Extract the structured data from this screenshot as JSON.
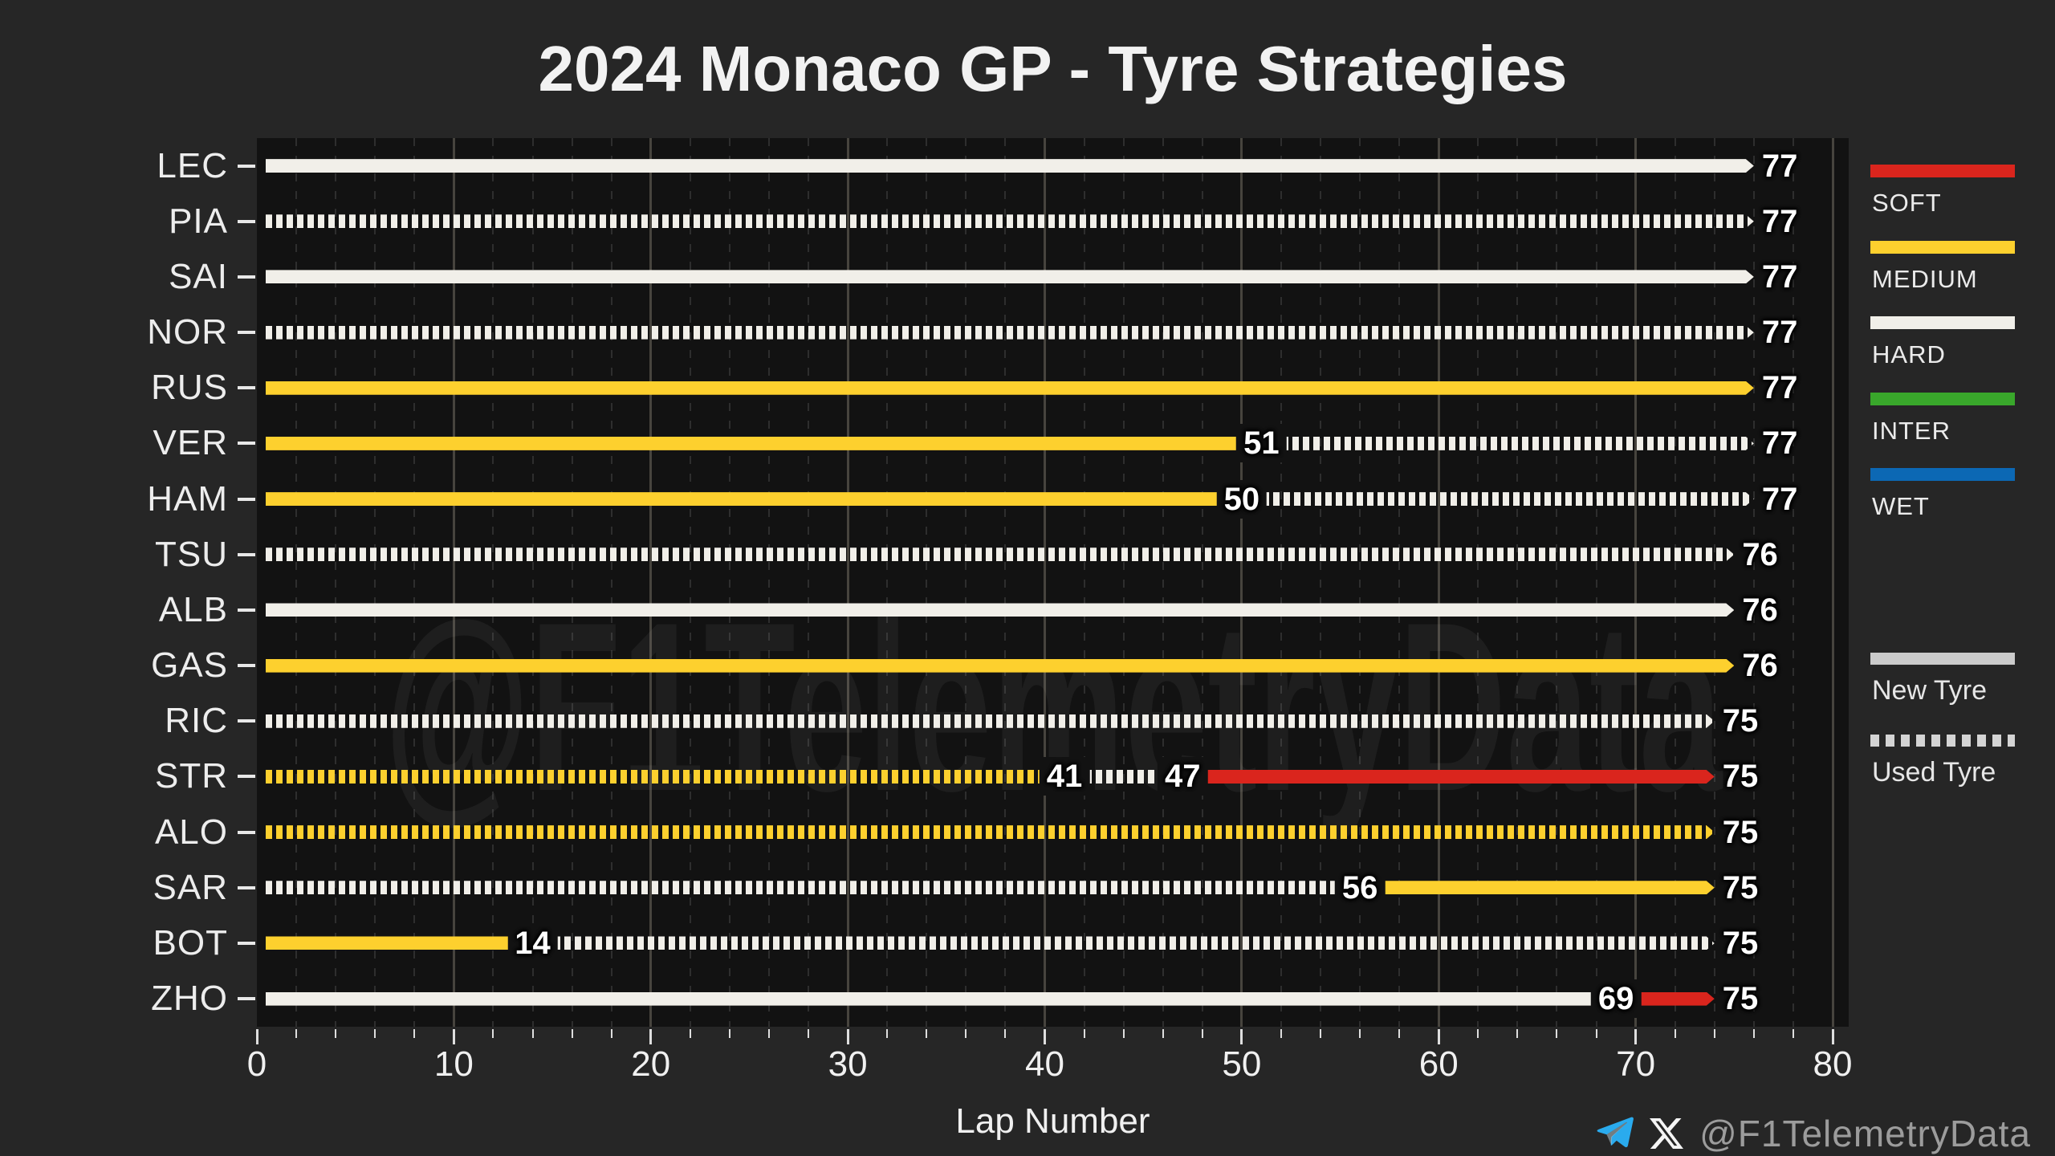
{
  "chart_data": {
    "type": "gantt",
    "title": "2024 Monaco GP - Tyre Strategies",
    "xlabel": "Lap Number",
    "watermark": "@F1TelemetryData",
    "axis": {
      "min": 0,
      "max": 80,
      "major_step": 10,
      "minor_step": 2,
      "tick_labels": [
        "0",
        "10",
        "20",
        "30",
        "40",
        "50",
        "60",
        "70",
        "80"
      ]
    },
    "compound_colors": {
      "SOFT": "#da251d",
      "MEDIUM": "#fdd02e",
      "HARD": "#f1efe9",
      "INTER": "#39a72b",
      "WET": "#0c68b4"
    },
    "drivers": [
      {
        "code": "LEC",
        "stints": [
          {
            "from": 0,
            "to": 77,
            "compound": "HARD",
            "tyre": "new",
            "label": "77"
          }
        ]
      },
      {
        "code": "PIA",
        "stints": [
          {
            "from": 0,
            "to": 77,
            "compound": "HARD",
            "tyre": "used",
            "label": "77"
          }
        ]
      },
      {
        "code": "SAI",
        "stints": [
          {
            "from": 0,
            "to": 77,
            "compound": "HARD",
            "tyre": "new",
            "label": "77"
          }
        ]
      },
      {
        "code": "NOR",
        "stints": [
          {
            "from": 0,
            "to": 77,
            "compound": "HARD",
            "tyre": "used",
            "label": "77"
          }
        ]
      },
      {
        "code": "RUS",
        "stints": [
          {
            "from": 0,
            "to": 77,
            "compound": "MEDIUM",
            "tyre": "new",
            "label": "77"
          }
        ]
      },
      {
        "code": "VER",
        "stints": [
          {
            "from": 0,
            "to": 51,
            "compound": "MEDIUM",
            "tyre": "new",
            "label": "51"
          },
          {
            "from": 51,
            "to": 77,
            "compound": "HARD",
            "tyre": "used",
            "label": "77"
          }
        ]
      },
      {
        "code": "HAM",
        "stints": [
          {
            "from": 0,
            "to": 50,
            "compound": "MEDIUM",
            "tyre": "new",
            "label": "50"
          },
          {
            "from": 50,
            "to": 77,
            "compound": "HARD",
            "tyre": "used",
            "label": "77"
          }
        ]
      },
      {
        "code": "TSU",
        "stints": [
          {
            "from": 0,
            "to": 76,
            "compound": "HARD",
            "tyre": "used",
            "label": "76"
          }
        ]
      },
      {
        "code": "ALB",
        "stints": [
          {
            "from": 0,
            "to": 76,
            "compound": "HARD",
            "tyre": "new",
            "label": "76"
          }
        ]
      },
      {
        "code": "GAS",
        "stints": [
          {
            "from": 0,
            "to": 76,
            "compound": "MEDIUM",
            "tyre": "new",
            "label": "76"
          }
        ]
      },
      {
        "code": "RIC",
        "stints": [
          {
            "from": 0,
            "to": 75,
            "compound": "HARD",
            "tyre": "used",
            "label": "75"
          }
        ]
      },
      {
        "code": "STR",
        "stints": [
          {
            "from": 0,
            "to": 41,
            "compound": "MEDIUM",
            "tyre": "used",
            "label": "41"
          },
          {
            "from": 41,
            "to": 47,
            "compound": "HARD",
            "tyre": "used",
            "label": "47"
          },
          {
            "from": 47,
            "to": 75,
            "compound": "SOFT",
            "tyre": "new",
            "label": "75"
          }
        ]
      },
      {
        "code": "ALO",
        "stints": [
          {
            "from": 0,
            "to": 75,
            "compound": "MEDIUM",
            "tyre": "used",
            "label": "75"
          }
        ]
      },
      {
        "code": "SAR",
        "stints": [
          {
            "from": 0,
            "to": 56,
            "compound": "HARD",
            "tyre": "used",
            "label": "56"
          },
          {
            "from": 56,
            "to": 75,
            "compound": "MEDIUM",
            "tyre": "new",
            "label": "75"
          }
        ]
      },
      {
        "code": "BOT",
        "stints": [
          {
            "from": 0,
            "to": 14,
            "compound": "MEDIUM",
            "tyre": "new",
            "label": "14"
          },
          {
            "from": 14,
            "to": 75,
            "compound": "HARD",
            "tyre": "used",
            "label": "75"
          }
        ]
      },
      {
        "code": "ZHO",
        "stints": [
          {
            "from": 0,
            "to": 69,
            "compound": "HARD",
            "tyre": "new",
            "label": "69"
          },
          {
            "from": 69,
            "to": 75,
            "compound": "SOFT",
            "tyre": "new",
            "label": "75"
          }
        ]
      }
    ],
    "legend": {
      "compounds": [
        {
          "label": "SOFT",
          "compound": "SOFT"
        },
        {
          "label": "MEDIUM",
          "compound": "MEDIUM"
        },
        {
          "label": "HARD",
          "compound": "HARD"
        },
        {
          "label": "INTER",
          "compound": "INTER"
        },
        {
          "label": "WET",
          "compound": "WET"
        }
      ],
      "usage": [
        {
          "label": "New Tyre",
          "style": "solid",
          "color": "#cbcbcb"
        },
        {
          "label": "Used Tyre",
          "style": "dashed",
          "color": "#d4d4d4"
        }
      ]
    }
  },
  "footer": {
    "handle": "@F1TelemetryData",
    "telegram_color": "#2AABEE",
    "x_color": "#f5f5f5"
  }
}
